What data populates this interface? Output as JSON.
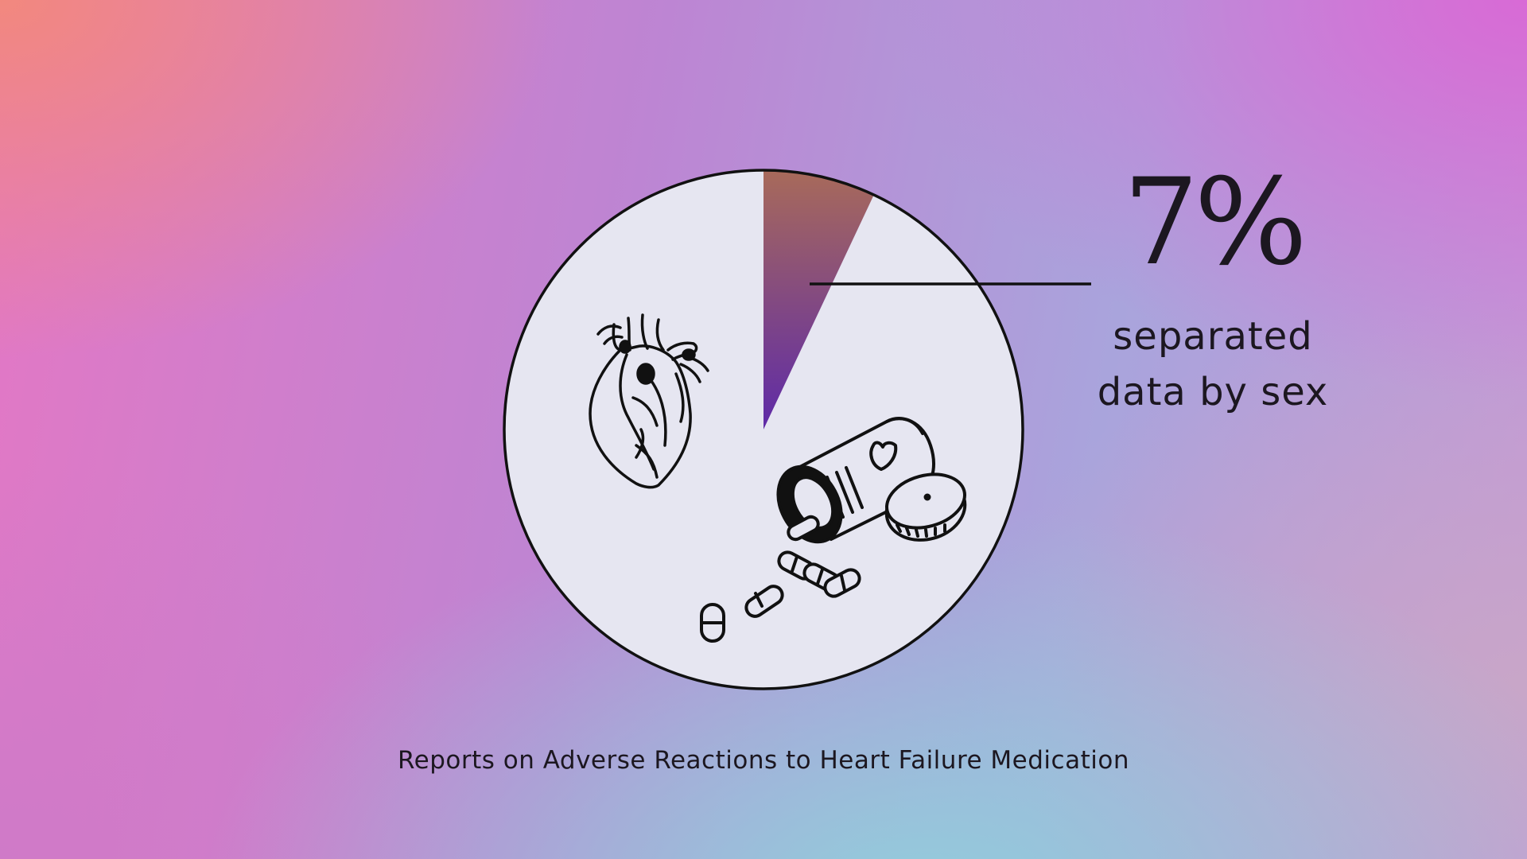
{
  "chart_data": {
    "type": "pie",
    "values": [
      7,
      93
    ],
    "highlight_index": 0,
    "highlight_colors": [
      "#a86a5a",
      "#5e2aa8"
    ],
    "background_slice_color": "#e6e6f1",
    "callout": {
      "value_text": "7%",
      "label_line1": "separated",
      "label_line2": "data by sex"
    },
    "caption": "Reports on Adverse Reactions to Heart Failure Medication"
  },
  "icons": [
    "heart-icon",
    "pill-bottle-icon",
    "pills-icon"
  ]
}
